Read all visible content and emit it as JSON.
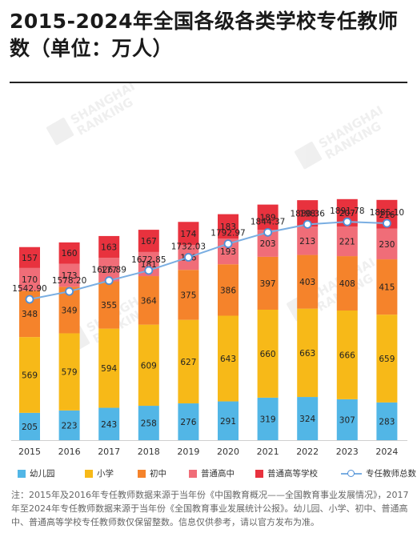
{
  "title": "2015-2024年全国各级各类学校专任教师数（单位：万人）",
  "watermark": "SHANGHAI RANKING",
  "chart_data": {
    "type": "bar",
    "stacked": true,
    "categories": [
      "2015",
      "2016",
      "2017",
      "2018",
      "2019",
      "2020",
      "2021",
      "2022",
      "2023",
      "2024"
    ],
    "series": [
      {
        "name": "幼儿园",
        "color": "#52b6e6",
        "values": [
          205,
          223,
          243,
          258,
          276,
          291,
          319,
          324,
          307,
          283
        ]
      },
      {
        "name": "小学",
        "color": "#f7b918",
        "values": [
          569,
          579,
          594,
          609,
          627,
          643,
          660,
          663,
          666,
          659
        ]
      },
      {
        "name": "初中",
        "color": "#f5832b",
        "values": [
          348,
          349,
          355,
          364,
          375,
          386,
          397,
          403,
          408,
          415
        ]
      },
      {
        "name": "普通高中",
        "color": "#f06d78",
        "values": [
          170,
          173,
          177,
          181,
          186,
          193,
          203,
          213,
          221,
          230
        ]
      },
      {
        "name": "普通高等学校",
        "color": "#e8323e",
        "values": [
          157,
          160,
          163,
          167,
          174,
          183,
          189,
          198,
          207,
          216
        ]
      }
    ],
    "line": {
      "name": "专任教师总数",
      "color": "#7aaee2",
      "values": [
        1542.9,
        1578.2,
        1626.89,
        1672.85,
        1732.03,
        1792.97,
        1844.37,
        1880.36,
        1891.78,
        1885.1
      ]
    },
    "line_labels": [
      "1542.90",
      "1578.20",
      "1626.89",
      "1672.85",
      "1732.03",
      "1792.97",
      "1844.37",
      "1880.36",
      "1891.78",
      "1885.10"
    ]
  },
  "note": "注：2015年及2016年专任教师数据来源于当年份《中国教育概况——全国教育事业发展情况》，2017年至2024年专任教师数据来源于当年份《全国教育事业发展统计公报》。幼儿园、小学、初中、普通高中、普通高等学校专任教师数仅保留整数。信息仅供参考，请以官方发布为准。"
}
